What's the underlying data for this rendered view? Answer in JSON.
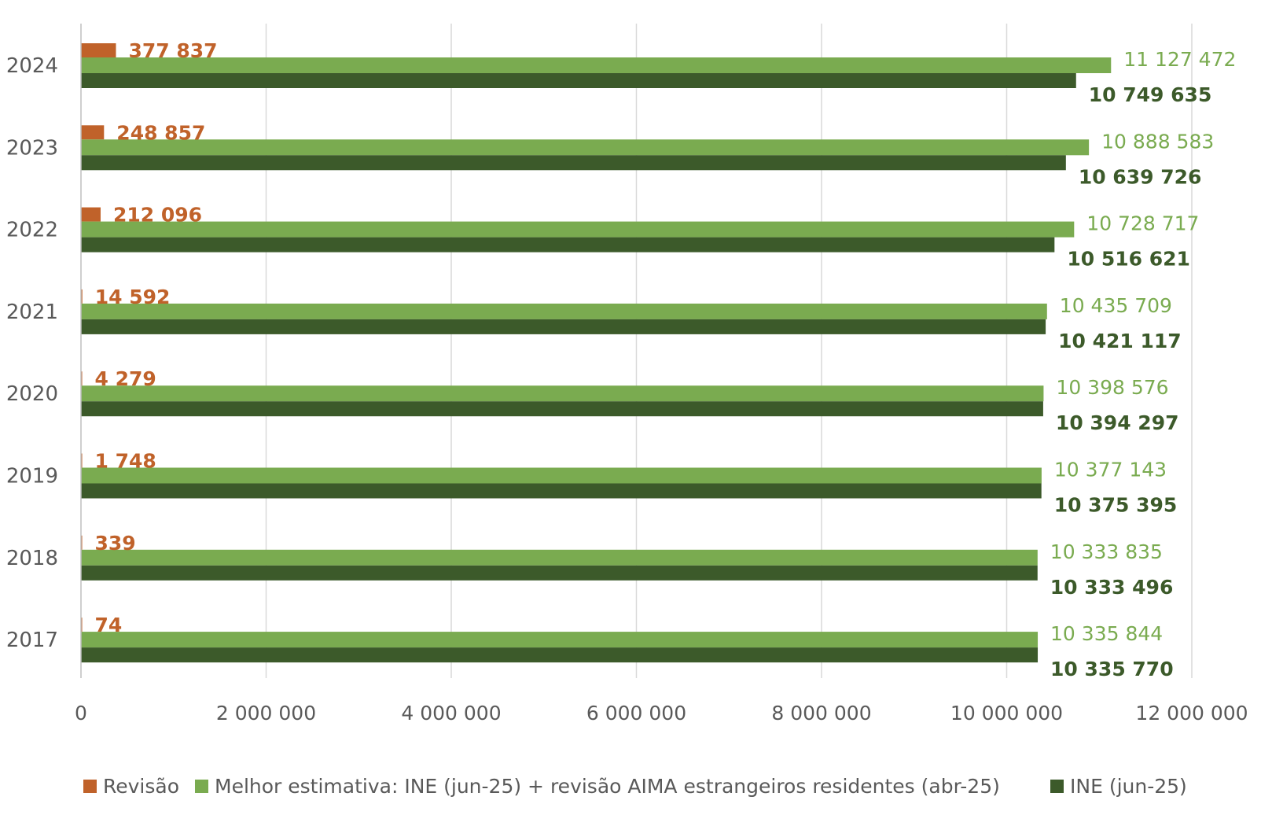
{
  "chart_data": {
    "type": "bar",
    "orientation": "horizontal",
    "categories": [
      "2024",
      "2023",
      "2022",
      "2021",
      "2020",
      "2019",
      "2018",
      "2017"
    ],
    "series": [
      {
        "name": "Revisão",
        "color": "#c0622a",
        "values": [
          377837,
          248857,
          212096,
          14592,
          4279,
          1748,
          339,
          74
        ],
        "labels": [
          "377 837",
          "248 857",
          "212 096",
          "14 592",
          "4 279",
          "1 748",
          "339",
          "74"
        ]
      },
      {
        "name": "Melhor estimativa: INE (jun-25) + revisão AIMA estrangeiros residentes (abr-25)",
        "color": "#7aab50",
        "values": [
          11127472,
          10888583,
          10728717,
          10435709,
          10398576,
          10377143,
          10333835,
          10335844
        ],
        "labels": [
          "11 127 472",
          "10 888 583",
          "10 728 717",
          "10 435 709",
          "10 398 576",
          "10 377 143",
          "10 333 835",
          "10 335 844"
        ]
      },
      {
        "name": "INE (jun-25)",
        "color": "#3c5a2a",
        "values": [
          10749635,
          10639726,
          10516621,
          10421117,
          10394297,
          10375395,
          10333496,
          10335770
        ],
        "labels": [
          "10 749 635",
          "10 639 726",
          "10 516 621",
          "10 421 117",
          "10 394 297",
          "10 375 395",
          "10 333 496",
          "10 335 770"
        ]
      }
    ],
    "xlim": [
      0,
      12000000
    ],
    "xticks": [
      0,
      2000000,
      4000000,
      6000000,
      8000000,
      10000000,
      12000000
    ],
    "xtick_labels": [
      "0",
      "2 000 000",
      "4 000 000",
      "6 000 000",
      "8 000 000",
      "10 000 000",
      "12 000 000"
    ],
    "grid": true,
    "legend_position": "bottom"
  }
}
